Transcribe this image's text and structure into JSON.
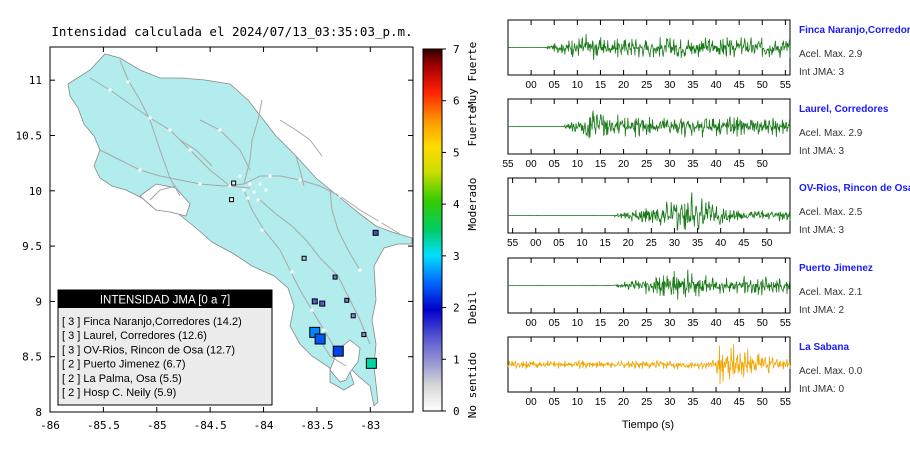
{
  "title": "Intensidad calculada el 2024/07/13_03:35:03_p.m.",
  "map": {
    "xlim": [
      -86,
      -82.6
    ],
    "ylim": [
      8,
      11.3
    ],
    "xticks": [
      "-86",
      "-85.5",
      "-85",
      "-84.5",
      "-84",
      "-83.5",
      "-83"
    ],
    "xtick_values": [
      -86,
      -85.5,
      -85,
      -84.5,
      -84,
      -83.5,
      -83
    ],
    "yticks": [
      "8",
      "8.5",
      "9",
      "9.5",
      "10",
      "10.5",
      "11"
    ],
    "ytick_values": [
      8,
      8.5,
      9,
      9.5,
      10,
      10.5,
      11
    ],
    "land_color": "#b2ecec",
    "stations_scale_color": true
  },
  "legend_box": {
    "header": "INTENSIDAD JMA [0 a 7]",
    "entries": [
      "[ 3 ]  Finca Naranjo,Corredores (14.2)",
      "[ 3 ]  Laurel, Corredores (12.6)",
      "[ 3 ]  OV-Rios, Rincon de Osa (12.7)",
      "[ 2 ]  Puerto Jimenez (6.7)",
      "[ 2 ]  La Palma, Osa (5.5)",
      "[ 2 ]  Hosp C. Neily (5.9)"
    ]
  },
  "colorbar": {
    "ticks": [
      "0",
      "1",
      "2",
      "3",
      "4",
      "5",
      "6",
      "7"
    ],
    "tick_values": [
      0,
      1,
      2,
      3,
      4,
      5,
      6,
      7
    ],
    "levels": [
      {
        "text": "No sentido",
        "value": 0.5
      },
      {
        "text": "Debil",
        "value": 2
      },
      {
        "text": "Moderado",
        "value": 4
      },
      {
        "text": "Fuerte",
        "value": 5.5
      },
      {
        "text": "Muy Fuerte",
        "value": 6.5
      }
    ]
  },
  "chart_data": [
    {
      "type": "scatter",
      "title": "Intensidad calculada el 2024/07/13_03:35:03_p.m.",
      "xlim": [
        -86,
        -82.6
      ],
      "ylim": [
        8,
        11.3
      ],
      "markers": [
        {
          "x": -83.52,
          "y": 8.72,
          "intensity": 2.6
        },
        {
          "x": -83.47,
          "y": 8.66,
          "intensity": 2.4
        },
        {
          "x": -83.3,
          "y": 8.55,
          "intensity": 2.3
        },
        {
          "x": -82.99,
          "y": 8.44,
          "intensity": 3.3
        },
        {
          "x": -83.52,
          "y": 9.0,
          "intensity": 1.4
        },
        {
          "x": -83.45,
          "y": 8.98,
          "intensity": 1.4
        },
        {
          "x": -83.33,
          "y": 9.22,
          "intensity": 1.2
        },
        {
          "x": -83.22,
          "y": 9.01,
          "intensity": 1.2
        },
        {
          "x": -83.16,
          "y": 8.87,
          "intensity": 1.0
        },
        {
          "x": -83.06,
          "y": 8.7,
          "intensity": 1.0
        },
        {
          "x": -82.95,
          "y": 9.62,
          "intensity": 1.5
        },
        {
          "x": -83.62,
          "y": 9.39,
          "intensity": 0.7
        },
        {
          "x": -84.28,
          "y": 10.07,
          "intensity": 0.2
        },
        {
          "x": -84.3,
          "y": 9.92,
          "intensity": 0.2
        }
      ]
    },
    {
      "type": "line",
      "xlabel": "Tiempo (s)",
      "panels": [
        {
          "station": "Finca Naranjo,Corredores",
          "accel": "Acel. Max. 2.9",
          "jma": "Int JMA: 3",
          "ticks": [
            "00",
            "05",
            "10",
            "15",
            "20",
            "25",
            "30",
            "35",
            "40",
            "45",
            "50",
            "55"
          ],
          "tick_values": [
            0,
            5,
            10,
            15,
            20,
            25,
            30,
            35,
            40,
            45,
            50,
            55
          ],
          "xlim": [
            -5,
            56
          ],
          "onset": 3,
          "peak_at": 12,
          "peak_amp": 0.62,
          "sustain": 0.45,
          "color": "#1a7a1a"
        },
        {
          "station": "Laurel, Corredores",
          "accel": "Acel. Max. 2.9",
          "jma": "Int JMA: 3",
          "ticks": [
            "55",
            "00",
            "05",
            "10",
            "15",
            "20",
            "25",
            "30",
            "35",
            "40",
            "45",
            "50"
          ],
          "tick_values": [
            -5,
            0,
            5,
            10,
            15,
            20,
            25,
            30,
            35,
            40,
            45,
            50
          ],
          "xlim": [
            -5,
            56
          ],
          "onset": 7,
          "peak_at": 14,
          "peak_amp": 0.85,
          "sustain": 0.45,
          "color": "#1a7a1a"
        },
        {
          "station": "OV-Rios, Rincon de Osa",
          "accel": "Acel. Max. 2.5",
          "jma": "Int JMA: 3",
          "ticks": [
            "55",
            "00",
            "05",
            "10",
            "15",
            "20",
            "25",
            "30",
            "35",
            "40",
            "45",
            "50"
          ],
          "tick_values": [
            -5,
            0,
            5,
            10,
            15,
            20,
            25,
            30,
            35,
            40,
            45,
            50
          ],
          "xlim": [
            -6,
            55
          ],
          "onset": 17,
          "peak_at": 34,
          "peak_amp": 0.95,
          "sustain": 0.25,
          "color": "#1a7a1a"
        },
        {
          "station": "Puerto Jimenez",
          "accel": "Acel. Max. 2.1",
          "jma": "Int JMA: 2",
          "ticks": [
            "00",
            "05",
            "10",
            "15",
            "20",
            "25",
            "30",
            "35",
            "40",
            "45",
            "50",
            "55"
          ],
          "tick_values": [
            0,
            5,
            10,
            15,
            20,
            25,
            30,
            35,
            40,
            45,
            50,
            55
          ],
          "xlim": [
            -5,
            56
          ],
          "onset": 18,
          "peak_at": 33,
          "peak_amp": 0.78,
          "sustain": 0.4,
          "color": "#1a7a1a"
        },
        {
          "station": "La Sabana",
          "accel": "Acel. Max. 0.0",
          "jma": "Int JMA: 0",
          "ticks": [
            "00",
            "05",
            "10",
            "15",
            "20",
            "25",
            "30",
            "35",
            "40",
            "45",
            "50",
            "55"
          ],
          "tick_values": [
            0,
            5,
            10,
            15,
            20,
            25,
            30,
            35,
            40,
            45,
            50,
            55
          ],
          "xlim": [
            -5,
            56
          ],
          "onset": -5,
          "peak_at": 44,
          "peak_amp": 0.95,
          "sustain": 0.18,
          "color": "#f2a500"
        }
      ]
    }
  ]
}
